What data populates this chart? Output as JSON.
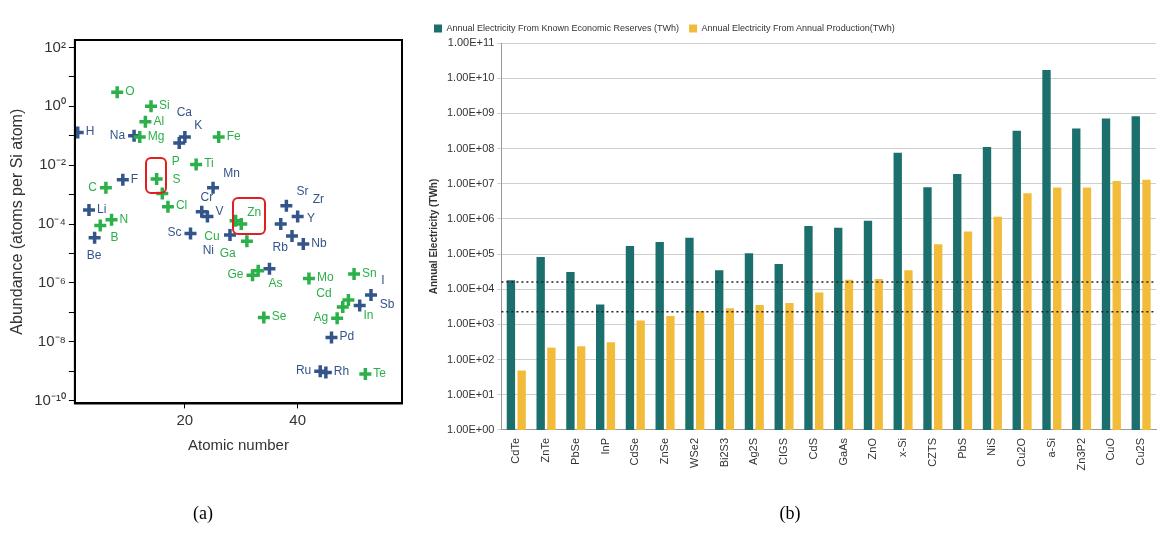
{
  "chart_data": [
    {
      "type": "scatter",
      "title": "(a)",
      "xlabel": "Atomic number",
      "ylabel": "Abundance (atoms per Si atom)",
      "log": "y",
      "grid": false,
      "legend": false,
      "marker": "cross",
      "xlim": [
        0.5,
        58.5
      ],
      "xticks": [
        20,
        40
      ],
      "ylim": [
        8e-11,
        180
      ],
      "yticks": [
        {
          "value": 100,
          "label": "10²"
        },
        {
          "value": 10,
          "label": null
        },
        {
          "value": 1,
          "label": "10⁰"
        },
        {
          "value": 0.1,
          "label": null
        },
        {
          "value": 0.01,
          "label": "10⁻²"
        },
        {
          "value": 0.001,
          "label": null
        },
        {
          "value": 0.0001,
          "label": "10⁻⁴"
        },
        {
          "value": 1e-05,
          "label": null
        },
        {
          "value": 1e-06,
          "label": "10⁻⁶"
        },
        {
          "value": 1e-07,
          "label": null
        },
        {
          "value": 1e-08,
          "label": "10⁻⁸"
        },
        {
          "value": 1e-09,
          "label": null
        },
        {
          "value": 1e-10,
          "label": "10⁻¹⁰"
        }
      ],
      "series": [
        {
          "color": "#2bb04a",
          "x": [
            5,
            6,
            7,
            8,
            12,
            13,
            14,
            15,
            16,
            17,
            22,
            26,
            29,
            30,
            31,
            32,
            33,
            34,
            42,
            47,
            48,
            49,
            50,
            52
          ],
          "values": [
            9e-05,
            0.0017,
            0.00014,
            3,
            0.09,
            0.3,
            1,
            0.0034,
            0.0011,
            0.00039,
            0.0105,
            0.09,
            0.00013,
            0.0001,
            2.6e-05,
            1.8e-06,
            2.6e-06,
            6.6e-08,
            1.4e-06,
            6.3e-08,
            1.5e-07,
            2.6e-07,
            2e-06,
            8e-10
          ],
          "value_labels": [
            "B",
            "C",
            "N",
            "O",
            "Mg",
            "Al",
            "Si",
            "P",
            "S",
            "Cl",
            "Ti",
            "Fe",
            "Cu",
            "Zn",
            "Ga",
            "Ge",
            "As",
            "Se",
            "Mo",
            "Ag",
            "Cd",
            "In",
            "Sn",
            "Te"
          ]
        },
        {
          "color": "#34558b",
          "x": [
            1,
            3,
            4,
            9,
            11,
            19,
            20,
            21,
            23,
            24,
            25,
            28,
            35,
            37,
            38,
            39,
            40,
            41,
            44,
            45,
            46,
            51,
            53
          ],
          "values": [
            0.13,
            0.0003,
            3.4e-05,
            0.0032,
            0.1,
            0.057,
            0.09,
            4.8e-05,
            0.00026,
            0.00018,
            0.0017,
            4.2e-05,
            3e-06,
            0.0001,
            0.00042,
            3.9e-05,
            0.00018,
            2.1e-05,
            1e-09,
            9e-10,
            1.4e-08,
            1.7e-07,
            3.9e-07
          ],
          "value_labels": [
            "H",
            "Li",
            "Be",
            "F",
            "Na",
            "K",
            "Ca",
            "Sc",
            "V",
            "Cr",
            "Mn",
            "Ni",
            null,
            "Rb",
            "Sr",
            "Y",
            "Zr",
            "Nb",
            "Ru",
            "Rh",
            "Pd",
            "Sb",
            "I"
          ]
        }
      ]
    },
    {
      "type": "bar",
      "title": "(b)",
      "ylabel": "Annual Electricity (TWh)",
      "log": "y",
      "grid": "y",
      "legend": "top left",
      "categories": [
        "CdTe",
        "ZnTe",
        "PbSe",
        "InP",
        "CdSe",
        "ZnSe",
        "WSe2",
        "Bi2S3",
        "Ag2S",
        "CIGS",
        "CdS",
        "GaAs",
        "ZnO",
        "x-Si",
        "CZTS",
        "PbS",
        "NiS",
        "Cu2O",
        "a-Si",
        "Zn3P2",
        "CuO",
        "Cu2S"
      ],
      "ylim": [
        1,
        100000000000.0
      ],
      "yticks": [
        {
          "value": 1,
          "label": "1.00E+00"
        },
        {
          "value": 10,
          "label": "1.00E+01"
        },
        {
          "value": 100,
          "label": "1.00E+02"
        },
        {
          "value": 1000,
          "label": "1.00E+03"
        },
        {
          "value": 10000,
          "label": "1.00E+04"
        },
        {
          "value": 100000,
          "label": "1.00E+05"
        },
        {
          "value": 1000000,
          "label": "1.00E+06"
        },
        {
          "value": 10000000,
          "label": "1.00E+07"
        },
        {
          "value": 100000000,
          "label": "1.00E+08"
        },
        {
          "value": 1000000000,
          "label": "1.00E+09"
        },
        {
          "value": 10000000000,
          "label": "1.00E+10"
        },
        {
          "value": 100000000000,
          "label": "1.00E+11"
        }
      ],
      "series": [
        {
          "name": "Annual Electricity From Known Economic Reserves (TWh)",
          "color": "#1b6f6c",
          "values": [
            18000,
            83000,
            31000,
            3700,
            170000,
            220000,
            290000,
            35000,
            105000,
            52000,
            630000,
            560000,
            890000,
            76000000,
            7900000,
            19000000,
            110000000,
            320000000,
            17000000000,
            370000000,
            710000000,
            830000000
          ]
        },
        {
          "name": "Annual Electricity From Annual Production(TWh)",
          "color": "#f2bc3a",
          "values": [
            49,
            220,
            240,
            310,
            1300,
            1750,
            2400,
            2900,
            3600,
            4100,
            8100,
            18500,
            19600,
            35000,
            190000,
            440000,
            1150000,
            5400000,
            7800000,
            7800000,
            12000000,
            13000000
          ]
        }
      ],
      "ref_lines": [
        {
          "axis": "y",
          "value": 16000,
          "color": "#222222",
          "line_style": "dotted"
        },
        {
          "axis": "y",
          "value": 2300,
          "color": "#222222",
          "line_style": "dotted"
        }
      ]
    }
  ]
}
